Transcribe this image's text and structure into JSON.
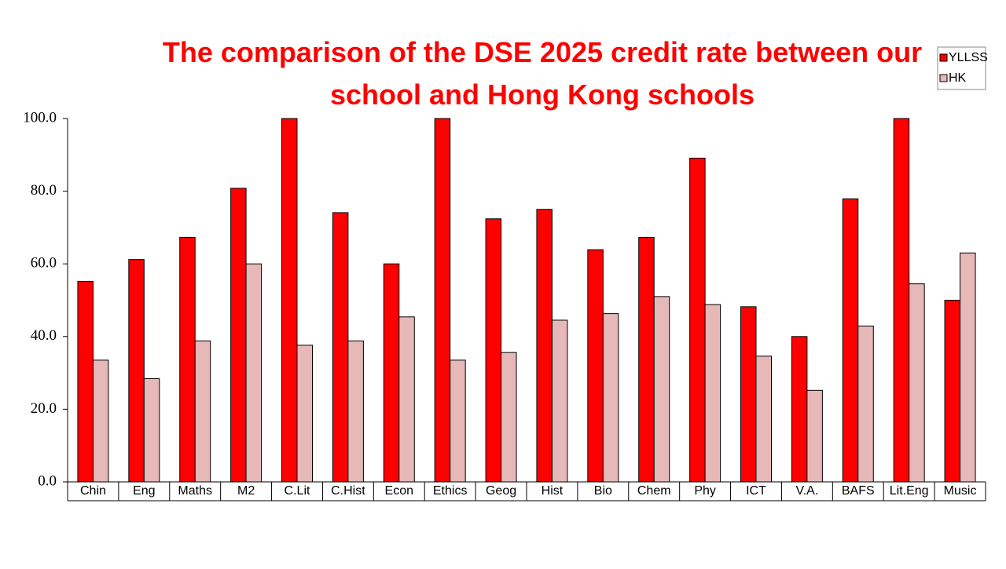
{
  "chart_data": {
    "type": "bar",
    "title": "The comparison of the DSE 2025 credit rate between our school and Hong Kong schools",
    "categories": [
      "Chin",
      "Eng",
      "Maths",
      "M2",
      "C.Lit",
      "C.Hist",
      "Econ",
      "Ethics",
      "Geog",
      "Hist",
      "Bio",
      "Chem",
      "Phy",
      "ICT",
      "V.A.",
      "BAFS",
      "Lit.Eng",
      "Music"
    ],
    "series": [
      {
        "name": "YLLSS",
        "color": "#ff0000",
        "values": [
          55.2,
          61.2,
          67.3,
          80.8,
          100,
          74.1,
          60,
          100,
          72.4,
          75,
          63.9,
          67.3,
          89.1,
          48.2,
          40,
          77.9,
          100,
          50
        ]
      },
      {
        "name": "HK",
        "color": "#e6b8b7",
        "values": [
          33.5,
          28.4,
          38.8,
          60,
          37.6,
          38.8,
          45.4,
          33.5,
          35.6,
          44.5,
          46.3,
          51,
          48.8,
          34.6,
          25.2,
          42.9,
          54.5,
          63
        ]
      }
    ],
    "ylim": [
      0,
      100
    ],
    "yticks": [
      {
        "value": 0,
        "label": "0.0"
      },
      {
        "value": 20,
        "label": "20.0"
      },
      {
        "value": 40,
        "label": "40.0"
      },
      {
        "value": 60,
        "label": "60.0"
      },
      {
        "value": 80,
        "label": "80.0"
      },
      {
        "value": 100,
        "label": "100.0"
      }
    ],
    "grid": false,
    "legend": "top-right"
  }
}
